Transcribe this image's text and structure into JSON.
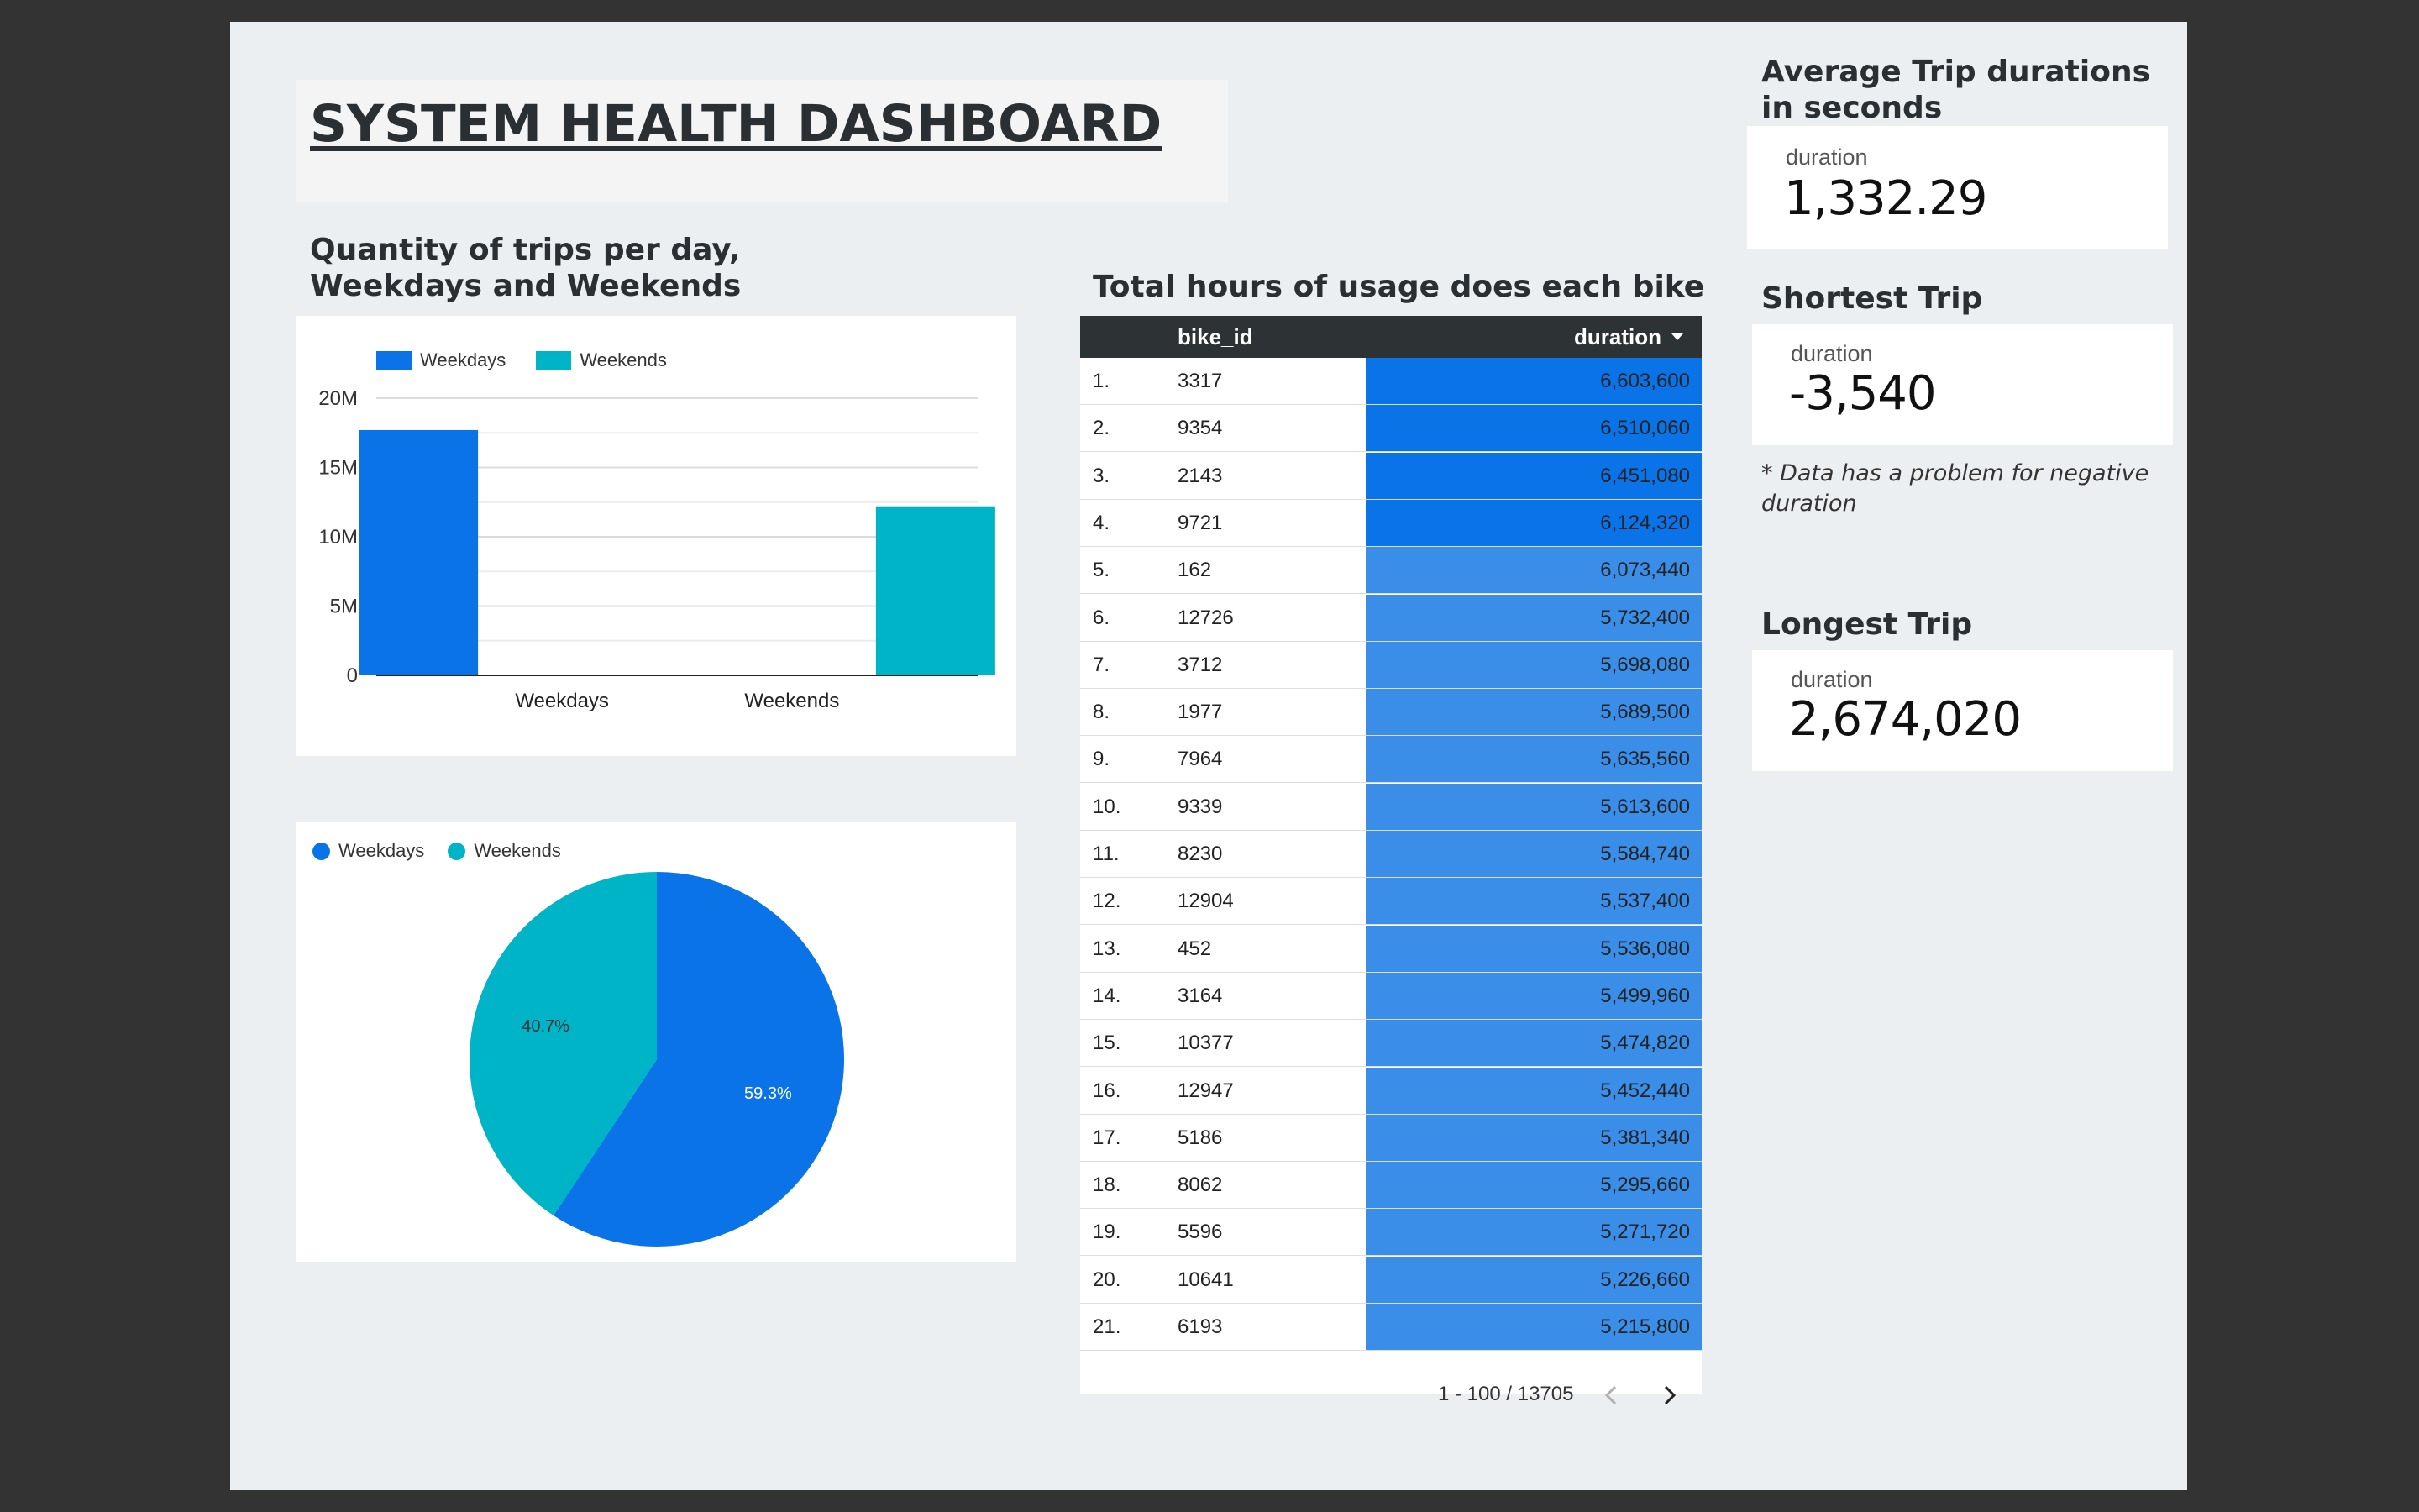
{
  "dashboard": {
    "title": "SYSTEM HEALTH DASHBOARD",
    "bar_chart_heading": "Quantity of trips per day,\nWeekdays and Weekends",
    "table_heading": "Total hours of usage does each bike",
    "avg_heading": "Average Trip durations in seconds",
    "shortest_heading": "Shortest Trip",
    "longest_heading": "Longest Trip",
    "note": "* Data has a problem for negative duration"
  },
  "colors": {
    "weekdays": "#0a73e8",
    "weekends": "#00b4c8",
    "table_header": "#2d3235",
    "bar_top": "#0a73e8",
    "bar_bottom": "#3a8ee8"
  },
  "chart_data": [
    {
      "type": "bar",
      "categories": [
        "Weekdays",
        "Weekends"
      ],
      "series": [
        {
          "name": "Weekdays",
          "values": [
            17700000,
            null
          ]
        },
        {
          "name": "Weekends",
          "values": [
            null,
            12200000
          ]
        }
      ],
      "y_ticks": [
        "0",
        "5M",
        "10M",
        "15M",
        "20M"
      ],
      "ylim": [
        0,
        20000000
      ],
      "grid": true,
      "legend": "top-left"
    },
    {
      "type": "pie",
      "categories": [
        "Weekdays",
        "Weekends"
      ],
      "values": [
        59.3,
        40.7
      ],
      "labels": [
        "59.3%",
        "40.7%"
      ],
      "legend": "top-left"
    }
  ],
  "table": {
    "columns": [
      "bike_id",
      "duration"
    ],
    "rows": [
      {
        "n": "1.",
        "bike_id": "3317",
        "duration": "6,603,600"
      },
      {
        "n": "2.",
        "bike_id": "9354",
        "duration": "6,510,060"
      },
      {
        "n": "3.",
        "bike_id": "2143",
        "duration": "6,451,080"
      },
      {
        "n": "4.",
        "bike_id": "9721",
        "duration": "6,124,320"
      },
      {
        "n": "5.",
        "bike_id": "162",
        "duration": "6,073,440"
      },
      {
        "n": "6.",
        "bike_id": "12726",
        "duration": "5,732,400"
      },
      {
        "n": "7.",
        "bike_id": "3712",
        "duration": "5,698,080"
      },
      {
        "n": "8.",
        "bike_id": "1977",
        "duration": "5,689,500"
      },
      {
        "n": "9.",
        "bike_id": "7964",
        "duration": "5,635,560"
      },
      {
        "n": "10.",
        "bike_id": "9339",
        "duration": "5,613,600"
      },
      {
        "n": "11.",
        "bike_id": "8230",
        "duration": "5,584,740"
      },
      {
        "n": "12.",
        "bike_id": "12904",
        "duration": "5,537,400"
      },
      {
        "n": "13.",
        "bike_id": "452",
        "duration": "5,536,080"
      },
      {
        "n": "14.",
        "bike_id": "3164",
        "duration": "5,499,960"
      },
      {
        "n": "15.",
        "bike_id": "10377",
        "duration": "5,474,820"
      },
      {
        "n": "16.",
        "bike_id": "12947",
        "duration": "5,452,440"
      },
      {
        "n": "17.",
        "bike_id": "5186",
        "duration": "5,381,340"
      },
      {
        "n": "18.",
        "bike_id": "8062",
        "duration": "5,295,660"
      },
      {
        "n": "19.",
        "bike_id": "5596",
        "duration": "5,271,720"
      },
      {
        "n": "20.",
        "bike_id": "10641",
        "duration": "5,226,660"
      },
      {
        "n": "21.",
        "bike_id": "6193",
        "duration": "5,215,800"
      }
    ],
    "pagination": "1 - 100 / 13705"
  },
  "kpis": {
    "average": {
      "label": "duration",
      "value": "1,332.29"
    },
    "shortest": {
      "label": "duration",
      "value": "-3,540"
    },
    "longest": {
      "label": "duration",
      "value": "2,674,020"
    }
  }
}
